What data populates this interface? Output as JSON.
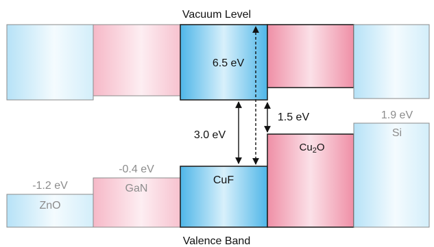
{
  "title_top": "Vacuum Level",
  "title_bottom": "Valence Band",
  "colors": {
    "blue_dark": "#5fc0ee",
    "blue_light": "#e9f7fd",
    "pink_dark": "#f07f99",
    "pink_light": "#fde9ee",
    "outline_strong": "#222222",
    "outline_faint": "#8a8a8a"
  },
  "materials": [
    {
      "id": "zno",
      "name": "ZnO",
      "energy_label": "-1.2 eV"
    },
    {
      "id": "gan",
      "name": "GaN",
      "energy_label": "-0.4 eV"
    },
    {
      "id": "cuf",
      "name": "CuF",
      "energy_label": ""
    },
    {
      "id": "cu2o",
      "name_main": "Cu",
      "name_sub": "2",
      "name_end": "O",
      "energy_label": ""
    },
    {
      "id": "si",
      "name": "Si",
      "energy_label": "1.9 eV"
    }
  ],
  "gaps": {
    "cuf_band_gap": "3.0 eV",
    "cuf_ionization": "6.5 eV",
    "cu2o_offset": "1.5 eV"
  }
}
